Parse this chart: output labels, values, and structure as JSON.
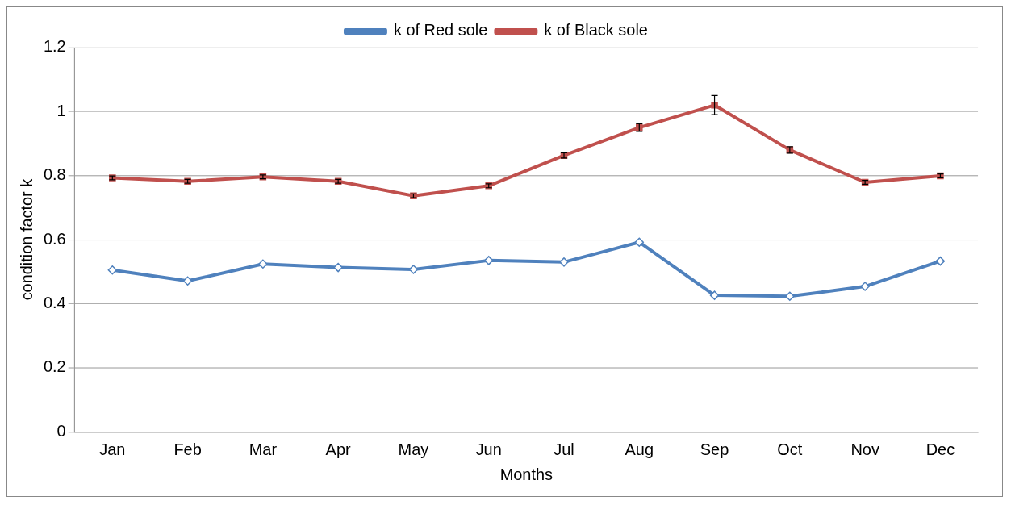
{
  "chart_data": {
    "type": "line",
    "xlabel": "Months",
    "ylabel": "condition factor k",
    "categories": [
      "Jan",
      "Feb",
      "Mar",
      "Apr",
      "May",
      "Jun",
      "Jul",
      "Aug",
      "Sep",
      "Oct",
      "Nov",
      "Dec"
    ],
    "series": [
      {
        "name": "k of Red sole",
        "color": "#4f81bd",
        "marker": "diamond",
        "values": [
          0.505,
          0.471,
          0.524,
          0.513,
          0.507,
          0.535,
          0.53,
          0.592,
          0.426,
          0.423,
          0.454,
          0.533
        ]
      },
      {
        "name": "k of Black sole",
        "color": "#c0504d",
        "marker": "square",
        "values": [
          0.793,
          0.782,
          0.796,
          0.782,
          0.737,
          0.768,
          0.863,
          0.95,
          1.02,
          0.88,
          0.779,
          0.799
        ],
        "errors": [
          0.006,
          0.006,
          0.006,
          0.006,
          0.006,
          0.006,
          0.008,
          0.012,
          0.03,
          0.01,
          0.006,
          0.006
        ]
      }
    ],
    "ylim": [
      0,
      1.2
    ],
    "yticks": [
      0,
      0.2,
      0.4,
      0.6,
      0.8,
      1,
      1.2
    ],
    "grid": "y",
    "legend": "top"
  }
}
